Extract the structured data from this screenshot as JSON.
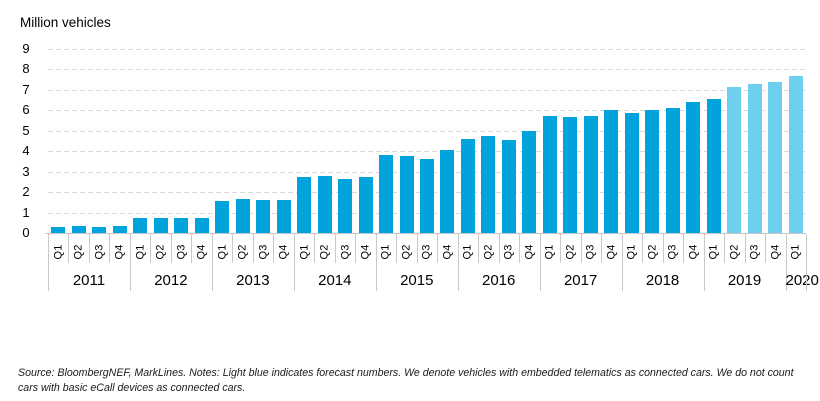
{
  "title": "Million vehicles",
  "footer": {
    "note": "Source: BloombergNEF, MarkLines. Notes: Light blue indicates forecast numbers. We denote vehicles with embedded telematics as connected cars. We do not count cars with basic eCall devices as connected cars."
  },
  "colors": {
    "actual": "#00a3dc",
    "forecast": "#6fcfee",
    "gridline": "#d9d9d9",
    "axis": "#c6c6c6",
    "separator": "#c9c9c9",
    "text": "#000000"
  },
  "chart_data": {
    "type": "bar",
    "title": "Million vehicles",
    "ylabel": "Million vehicles",
    "ylim": [
      0,
      9
    ],
    "yticks": [
      0,
      1,
      2,
      3,
      4,
      5,
      6,
      7,
      8,
      9
    ],
    "grid": "horizontal dashed",
    "legend_position": "none",
    "forecast_note": "Light blue indicates forecast numbers (2019 Q2 onward)",
    "years": [
      {
        "year": "2011",
        "quarters": [
          "Q1",
          "Q2",
          "Q3",
          "Q4"
        ],
        "values": [
          0.3,
          0.35,
          0.3,
          0.32
        ],
        "forecast": [
          false,
          false,
          false,
          false
        ]
      },
      {
        "year": "2012",
        "quarters": [
          "Q1",
          "Q2",
          "Q3",
          "Q4"
        ],
        "values": [
          0.75,
          0.75,
          0.75,
          0.75
        ],
        "forecast": [
          false,
          false,
          false,
          false
        ]
      },
      {
        "year": "2013",
        "quarters": [
          "Q1",
          "Q2",
          "Q3",
          "Q4"
        ],
        "values": [
          1.55,
          1.65,
          1.6,
          1.6
        ],
        "forecast": [
          false,
          false,
          false,
          false
        ]
      },
      {
        "year": "2014",
        "quarters": [
          "Q1",
          "Q2",
          "Q3",
          "Q4"
        ],
        "values": [
          2.75,
          2.8,
          2.65,
          2.75
        ],
        "forecast": [
          false,
          false,
          false,
          false
        ]
      },
      {
        "year": "2015",
        "quarters": [
          "Q1",
          "Q2",
          "Q3",
          "Q4"
        ],
        "values": [
          3.8,
          3.75,
          3.6,
          4.05
        ],
        "forecast": [
          false,
          false,
          false,
          false
        ]
      },
      {
        "year": "2016",
        "quarters": [
          "Q1",
          "Q2",
          "Q3",
          "Q4"
        ],
        "values": [
          4.6,
          4.75,
          4.55,
          5.0
        ],
        "forecast": [
          false,
          false,
          false,
          false
        ]
      },
      {
        "year": "2017",
        "quarters": [
          "Q1",
          "Q2",
          "Q3",
          "Q4"
        ],
        "values": [
          5.7,
          5.65,
          5.7,
          6.0
        ],
        "forecast": [
          false,
          false,
          false,
          false
        ]
      },
      {
        "year": "2018",
        "quarters": [
          "Q1",
          "Q2",
          "Q3",
          "Q4"
        ],
        "values": [
          5.85,
          6.0,
          6.1,
          6.4
        ],
        "forecast": [
          false,
          false,
          false,
          false
        ]
      },
      {
        "year": "2019",
        "quarters": [
          "Q1",
          "Q2",
          "Q3",
          "Q4"
        ],
        "values": [
          6.55,
          7.15,
          7.3,
          7.4
        ],
        "forecast": [
          false,
          true,
          true,
          true
        ]
      },
      {
        "year": "2020",
        "quarters": [
          "Q1"
        ],
        "values": [
          7.7
        ],
        "forecast": [
          true
        ]
      }
    ]
  }
}
